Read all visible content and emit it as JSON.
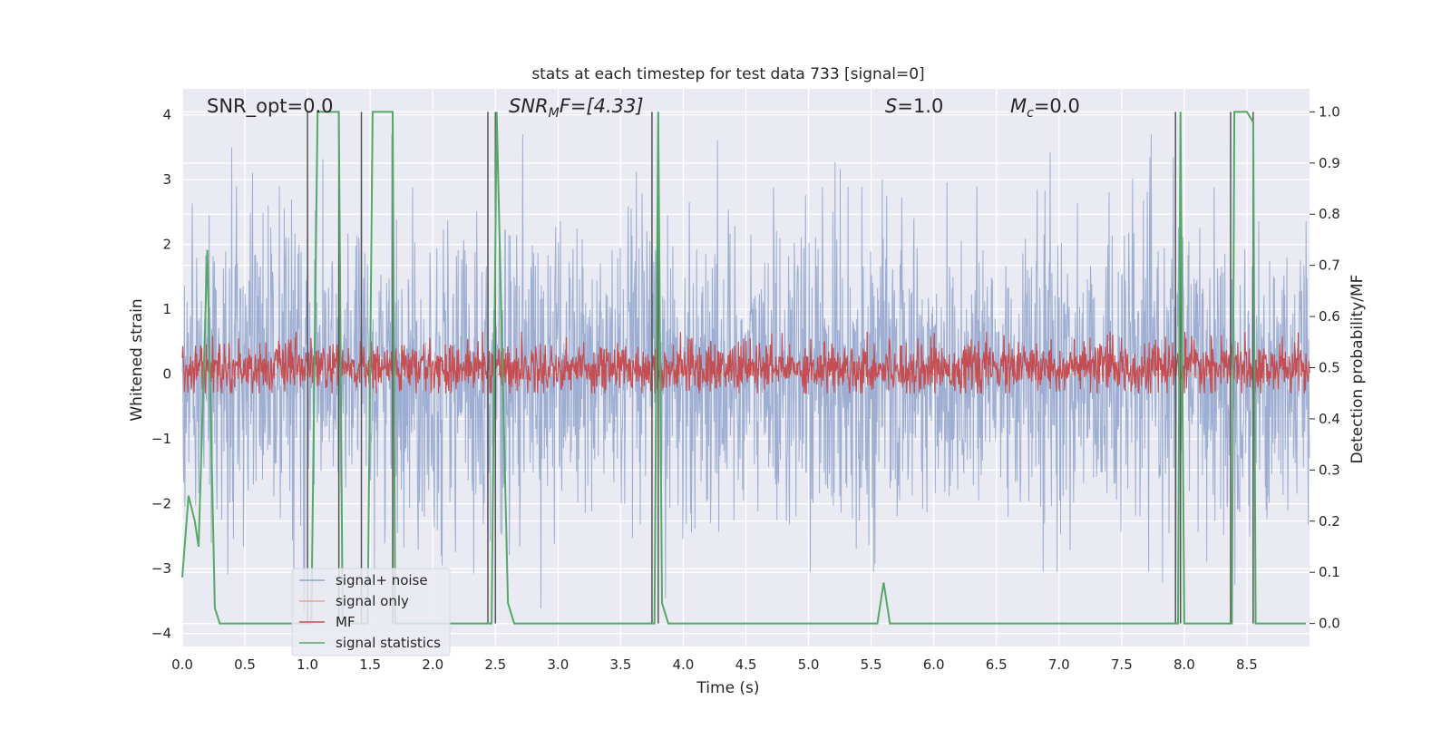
{
  "chart_data": {
    "type": "line",
    "title": "stats at each timestep for test data 733 [signal=0]",
    "xlabel": "Time (s)",
    "ylabel": "Whitened strain",
    "ylabel_right": "Detection probability/MF",
    "xlim": [
      0,
      9.0
    ],
    "ylim": [
      -4.2,
      4.4
    ],
    "ylim_right": [
      -0.045,
      1.045
    ],
    "x_ticks": [
      0,
      0.5,
      1,
      1.5,
      2,
      2.5,
      3,
      3.5,
      4,
      4.5,
      5,
      5.5,
      6,
      6.5,
      7,
      7.5,
      8,
      8.5
    ],
    "x_tick_labels": [
      "0.0",
      "0.5",
      "1.0",
      "1.5",
      "2.0",
      "2.5",
      "3.0",
      "3.5",
      "4.0",
      "4.5",
      "5.0",
      "5.5",
      "6.0",
      "6.5",
      "7.0",
      "7.5",
      "8.0",
      "8.5"
    ],
    "y_ticks": [
      -4,
      -3,
      -2,
      -1,
      0,
      1,
      2,
      3,
      4
    ],
    "y_tick_labels": [
      "−4",
      "−3",
      "−2",
      "−1",
      "0",
      "1",
      "2",
      "3",
      "4"
    ],
    "y2_ticks": [
      0,
      0.1,
      0.2,
      0.3,
      0.4,
      0.5,
      0.6,
      0.7,
      0.8,
      0.9,
      1.0
    ],
    "y2_tick_labels": [
      "0.0",
      "0.1",
      "0.2",
      "0.3",
      "0.4",
      "0.5",
      "0.6",
      "0.7",
      "0.8",
      "0.9",
      "1.0"
    ],
    "grid": true,
    "legend_position": "lower-left",
    "annotations": {
      "snr_opt": "SNR_opt=0.0",
      "snr_mf_main": "SNR",
      "snr_mf_sub": "M",
      "snr_mf_rest": "F=[4.33]",
      "s_main": "S",
      "s_rest": "=1.0",
      "mc_main": "M",
      "mc_sub": "c",
      "mc_rest": "=0.0"
    },
    "series": [
      {
        "name": "signal+ noise",
        "color": "#8fa3cc",
        "axis": "left",
        "description_values": "whitened noise, approx. range -3.7 to 3.7"
      },
      {
        "name": "signal only",
        "color": "#e8a58a",
        "axis": "left",
        "values_constant": 0
      },
      {
        "name": "MF",
        "color": "#c44e52",
        "axis": "right",
        "range": [
          0.45,
          0.57
        ]
      },
      {
        "name": "signal statistics",
        "color": "#55a868",
        "axis": "right",
        "x": [
          0.0,
          0.05,
          0.1,
          0.13,
          0.2,
          0.26,
          0.3,
          0.35,
          1.0,
          1.03,
          1.08,
          1.25,
          1.28,
          1.45,
          1.48,
          1.52,
          1.68,
          1.7,
          2.45,
          2.47,
          2.51,
          2.6,
          2.65,
          3.75,
          3.77,
          3.8,
          3.83,
          3.88,
          3.95,
          5.55,
          5.6,
          5.65,
          5.75,
          7.95,
          7.97,
          8.0,
          8.05,
          8.38,
          8.4,
          8.44,
          8.5,
          8.55,
          8.57,
          8.6,
          8.97
        ],
        "y": [
          0.09,
          0.25,
          0.2,
          0.15,
          0.73,
          0.03,
          0.0,
          0.0,
          0.0,
          0.0,
          1.0,
          1.0,
          0.0,
          0.0,
          0.0,
          1.0,
          1.0,
          0.0,
          0.0,
          0.0,
          1.0,
          0.04,
          0.0,
          0.0,
          0.0,
          1.0,
          0.04,
          0.0,
          0.0,
          0.0,
          0.08,
          0.0,
          0.0,
          0.0,
          1.0,
          0.0,
          0.0,
          0.0,
          1.0,
          1.0,
          1.0,
          0.98,
          0.0,
          0.0,
          0.0
        ]
      }
    ],
    "vertical_markers_x": [
      1.0,
      1.25,
      1.43,
      1.68,
      2.44,
      2.5,
      3.75,
      3.8,
      7.93,
      7.97,
      8.37,
      8.55
    ]
  },
  "colors": {
    "plot_background": "#eaeaf2",
    "grid": "#ffffff",
    "marker": "#555555"
  }
}
